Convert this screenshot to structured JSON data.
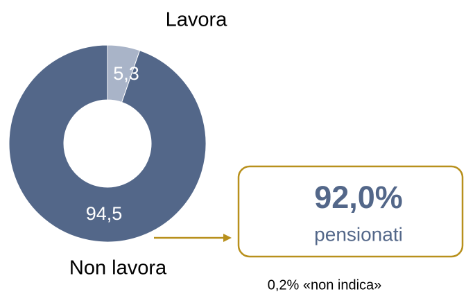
{
  "chart_data": {
    "type": "donut",
    "categories": [
      "Lavora",
      "Non lavora"
    ],
    "values": [
      5.3,
      94.5
    ],
    "value_labels": [
      "5,3",
      "94,5"
    ],
    "colors": [
      "#a9b4c8",
      "#536789"
    ],
    "callout": {
      "value": "92,0%",
      "label": "pensionati"
    },
    "note": "0,2% «non indica»"
  }
}
